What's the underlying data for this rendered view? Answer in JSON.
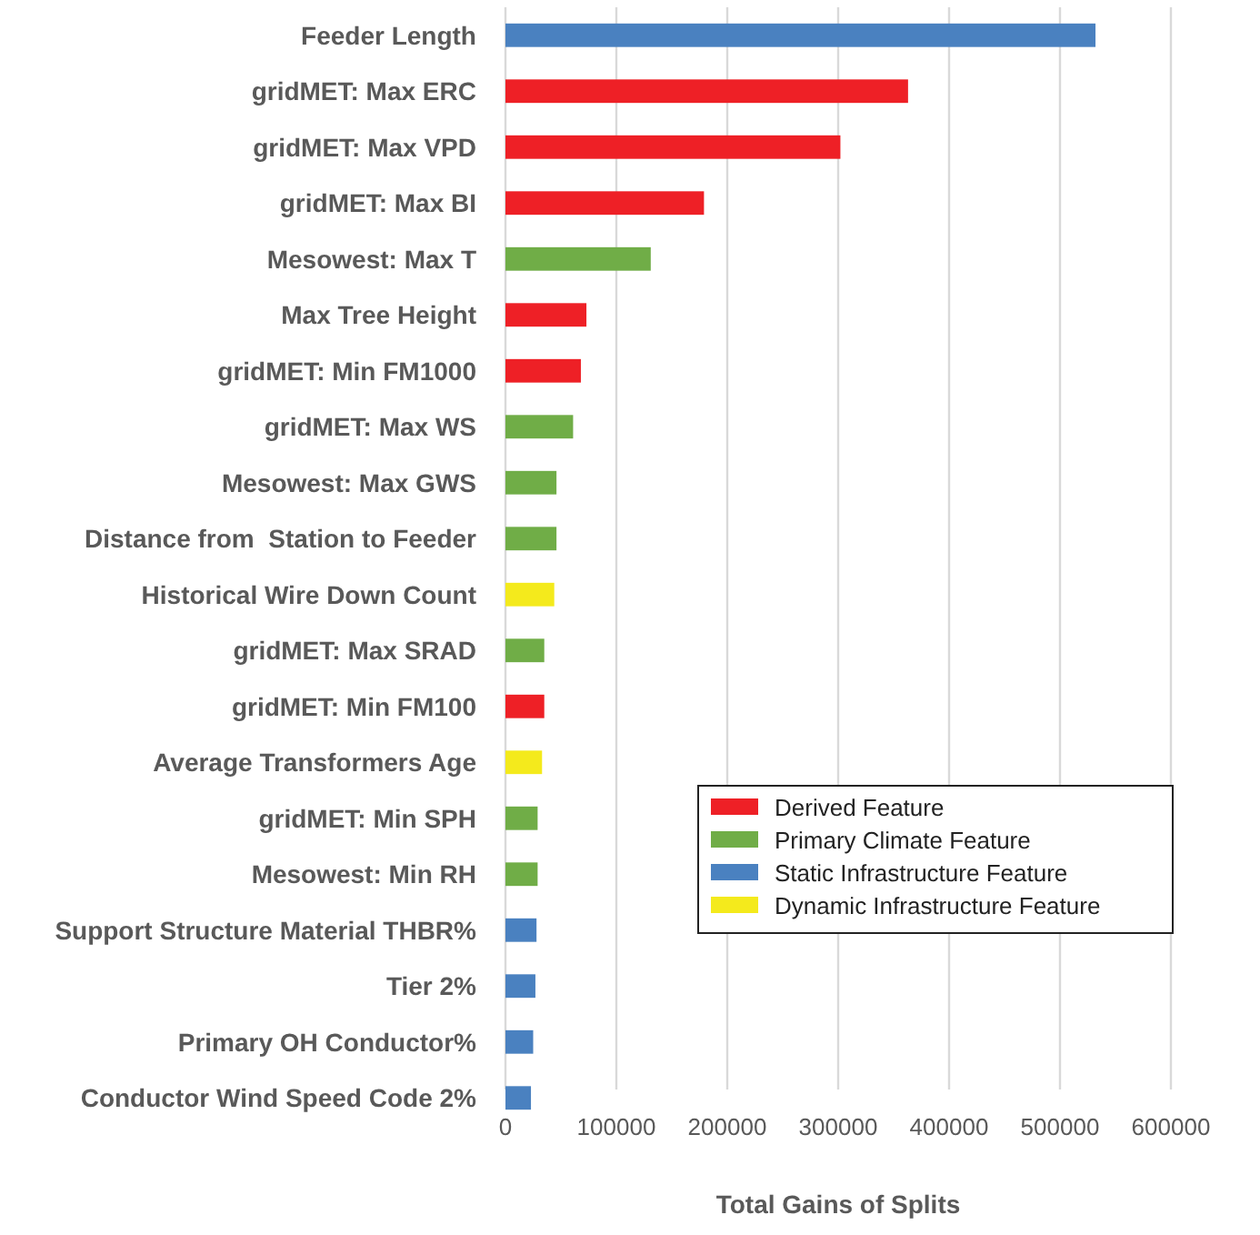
{
  "chart_data": {
    "type": "bar",
    "orientation": "horizontal",
    "xlabel": "Total Gains of Splits",
    "categories": [
      "Feeder Length",
      "gridMET: Max ERC",
      "gridMET: Max VPD",
      "gridMET: Max BI",
      "Mesowest: Max T",
      "Max Tree Height",
      "gridMET: Min FM1000",
      "gridMET: Max WS",
      "Mesowest: Max GWS",
      "Distance from  Station to Feeder",
      "Historical Wire Down Count",
      "gridMET: Max SRAD",
      "gridMET: Min FM100",
      "Average Transformers Age",
      "gridMET: Min SPH",
      "Mesowest: Min RH",
      "Support Structure Material THBR%",
      "Tier 2%",
      "Primary OH Conductor%",
      "Conductor Wind Speed Code 2%"
    ],
    "series": [
      {
        "name": "Derived Feature",
        "color": "#ee2026",
        "values": [
          null,
          363000,
          302000,
          179000,
          null,
          73000,
          68000,
          null,
          null,
          null,
          null,
          null,
          35000,
          null,
          null,
          null,
          null,
          null,
          null,
          null
        ]
      },
      {
        "name": "Primary Climate Feature",
        "color": "#70ad47",
        "values": [
          null,
          null,
          null,
          null,
          131000,
          null,
          null,
          61000,
          46000,
          46000,
          null,
          35000,
          null,
          null,
          29000,
          29000,
          null,
          null,
          null,
          null
        ]
      },
      {
        "name": "Static Infrastructure Feature",
        "color": "#4a81c0",
        "values": [
          532000,
          null,
          null,
          null,
          null,
          null,
          null,
          null,
          null,
          null,
          null,
          null,
          null,
          null,
          null,
          null,
          28000,
          27000,
          25000,
          23000
        ]
      },
      {
        "name": "Dynamic Infrastructure Feature",
        "color": "#f4ea1c",
        "values": [
          null,
          null,
          null,
          null,
          null,
          null,
          null,
          null,
          null,
          null,
          44000,
          null,
          null,
          33000,
          null,
          null,
          null,
          null,
          null,
          null
        ]
      }
    ],
    "xlim": [
      0,
      600000
    ],
    "xticks": [
      0,
      100000,
      200000,
      300000,
      400000,
      500000,
      600000
    ],
    "grid": "x",
    "legend": "bottom right"
  }
}
